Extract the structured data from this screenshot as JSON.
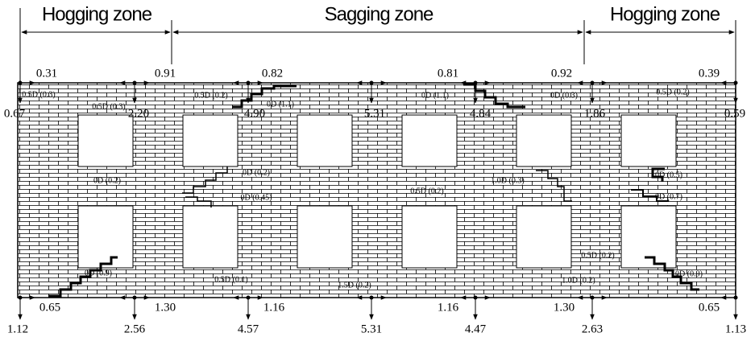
{
  "zones": [
    "Hogging zone",
    "Sagging zone",
    "Hogging zone"
  ],
  "top_spans": [
    "0.31",
    "0.91",
    "0.82",
    "0.81",
    "0.92",
    "0.39"
  ],
  "top_points": [
    "0.67",
    "2.20",
    "4.90",
    "5.31",
    "4.84",
    "1.86",
    "0.59"
  ],
  "bottom_spans": [
    "0.65",
    "1.30",
    "1.16",
    "1.16",
    "1.30",
    "0.65"
  ],
  "bottom_points": [
    "1.12",
    "2.56",
    "4.57",
    "5.31",
    "4.47",
    "2.63",
    "1.13"
  ],
  "cracks": [
    "0.5D (0.3)",
    "0.5D (0.3)",
    "0.5D (0.2)",
    "0D (1.1)",
    "0D (1.1)",
    "0D (0.3)",
    "0.5D (0.2)",
    "0D (0.2)",
    "0D (0.2)",
    "0D (0.45)",
    "0.5D (0.2)",
    "1.0D (0.3)",
    "0D (0.5)",
    "0D (0.7)",
    "0D (0.9)",
    "0.5D (0.1)",
    "1.5D (0.2)",
    "0.5D (0.2)",
    "1.0D (0.2)",
    "0D (0.9)"
  ]
}
